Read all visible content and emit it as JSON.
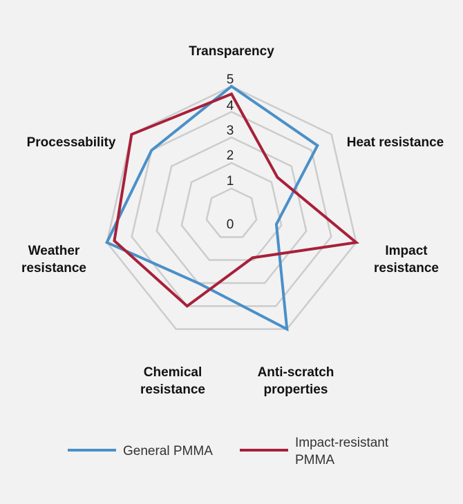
{
  "chart_data": {
    "type": "radar",
    "title": "",
    "axes": [
      [
        "Transparency"
      ],
      [
        "Heat resistance"
      ],
      [
        "Impact",
        "resistance"
      ],
      [
        "Anti-scratch",
        "properties"
      ],
      [
        "Chemical",
        "resistance"
      ],
      [
        "Weather",
        "resistance"
      ],
      [
        "Processability"
      ]
    ],
    "range": [
      0,
      5
    ],
    "ticks": [
      0,
      1,
      2,
      3,
      4,
      5
    ],
    "series": [
      {
        "name": "General PMMA",
        "color": "#4a90c8",
        "values": [
          5,
          4.3,
          1.8,
          5,
          3,
          5,
          4
        ]
      },
      {
        "name": "Impact-resistant PMMA",
        "color": "#a8203a",
        "values": [
          4.7,
          2.3,
          5,
          1.9,
          4,
          4.7,
          5
        ]
      }
    ],
    "legend": {
      "position": "bottom",
      "entries": [
        [
          "General PMMA"
        ],
        [
          "Impact-resistant",
          "PMMA"
        ]
      ]
    },
    "grid_color": "#cccccc"
  }
}
